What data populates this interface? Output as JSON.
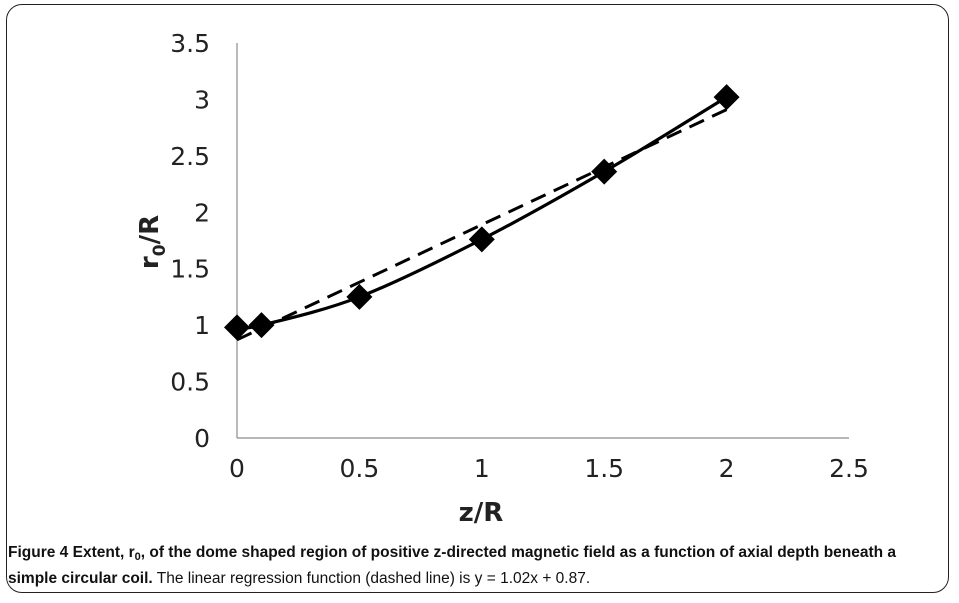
{
  "chart_data": {
    "type": "line",
    "xlabel": "z/R",
    "ylabel_main": "r",
    "ylabel_sub": "0",
    "ylabel_tail": "/R",
    "xlim": [
      0,
      2.5
    ],
    "ylim": [
      0,
      3.5
    ],
    "x_ticks": [
      0,
      0.5,
      1,
      1.5,
      2,
      2.5
    ],
    "y_ticks": [
      0,
      0.5,
      1,
      1.5,
      2,
      2.5,
      3,
      3.5
    ],
    "x_tick_labels": [
      "0",
      "0.5",
      "1",
      "1.5",
      "2",
      "2.5"
    ],
    "y_tick_labels": [
      "0",
      "0.5",
      "1",
      "1.5",
      "2",
      "2.5",
      "3",
      "3.5"
    ],
    "grid": false,
    "series": [
      {
        "style": "solid-with-diamond-markers",
        "color": "#000000",
        "x": [
          0,
          0.1,
          0.5,
          1,
          1.5,
          2
        ],
        "y": [
          0.98,
          1.0,
          1.25,
          1.76,
          2.36,
          3.02
        ]
      },
      {
        "style": "dashed",
        "color": "#000000",
        "x": [
          0,
          2
        ],
        "y": [
          0.87,
          2.91
        ]
      }
    ]
  },
  "caption": {
    "figure_label": "Figure 4",
    "bold_part_1": "Extent, r",
    "bold_sub": "0",
    "bold_part_2": ", of the dome shaped region of positive z-directed magnetic field as a function of axial depth beneath a simple circular coil.",
    "normal_part": "The linear regression function (dashed line) is y = 1.02x + 0.87."
  }
}
